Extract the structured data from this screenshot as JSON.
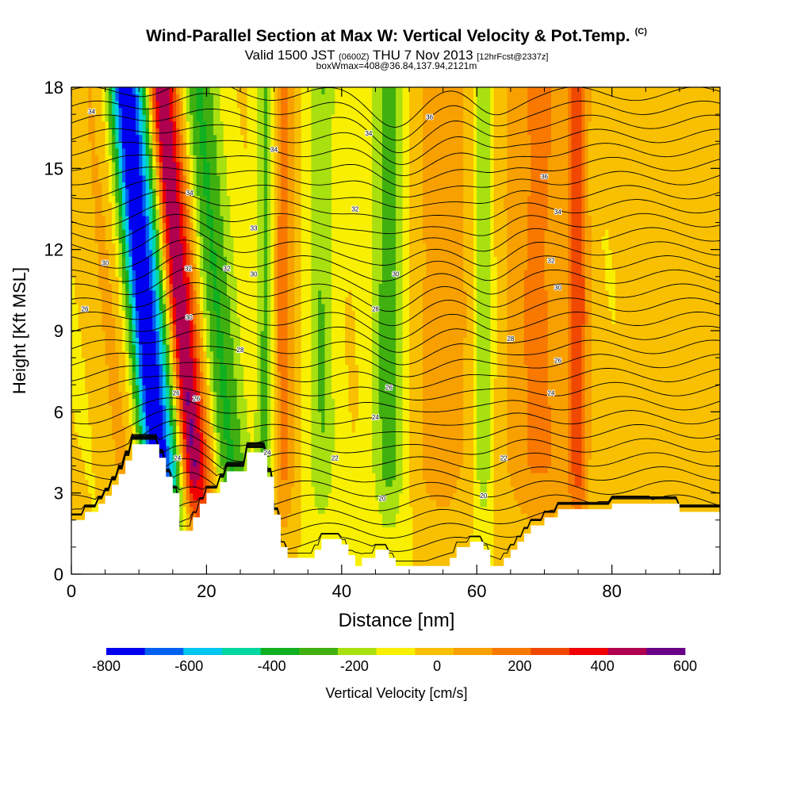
{
  "title": {
    "main": "Wind-Parallel Section at Max W: Vertical Velocity & Pot.Temp.",
    "copyright": "(C)",
    "valid_prefix": "Valid 1500 JST",
    "valid_zulu": "(0600Z)",
    "valid_date": "THU 7 Nov 2013",
    "forecast": "[12hrFcst@2337z]",
    "box": "boxWmax=408@36.84,137.94,2121m"
  },
  "chart_data": {
    "type": "heatmap",
    "xlabel": "Distance [nm]",
    "ylabel": "Height [Kft MSL]",
    "xlim": [
      0,
      96
    ],
    "ylim": [
      0,
      18
    ],
    "xticks": [
      "0",
      "20",
      "40",
      "60",
      "80"
    ],
    "yticks": [
      "0",
      "3",
      "6",
      "9",
      "12",
      "15",
      "18"
    ],
    "colorbar": {
      "label": "Vertical Velocity [cm/s]",
      "ticks": [
        "-800",
        "-600",
        "-400",
        "-200",
        "0",
        "200",
        "400",
        "600"
      ],
      "min": -800,
      "max": 600,
      "step": 100,
      "colors": [
        "#0000f0",
        "#0060f0",
        "#00c8f0",
        "#00d8a0",
        "#10b020",
        "#40b010",
        "#a8e010",
        "#f8f000",
        "#f8c000",
        "#f8a000",
        "#f87800",
        "#f04800",
        "#f00000",
        "#b00050",
        "#6a0088"
      ]
    },
    "terrain_kft": [
      [
        0,
        2
      ],
      [
        2,
        2
      ],
      [
        2,
        2.3
      ],
      [
        4,
        2.3
      ],
      [
        4,
        2.6
      ],
      [
        5,
        2.6
      ],
      [
        5,
        2.9
      ],
      [
        6,
        2.9
      ],
      [
        6,
        3.3
      ],
      [
        7,
        3.3
      ],
      [
        7,
        3.7
      ],
      [
        8,
        3.7
      ],
      [
        8,
        4.2
      ],
      [
        9,
        4.2
      ],
      [
        9,
        4.8
      ],
      [
        13,
        4.8
      ],
      [
        13,
        4.3
      ],
      [
        14,
        4.3
      ],
      [
        14,
        3.6
      ],
      [
        15,
        3.6
      ],
      [
        15,
        3.0
      ],
      [
        16,
        3.0
      ],
      [
        16,
        1.6
      ],
      [
        18,
        1.6
      ],
      [
        18,
        2.1
      ],
      [
        19,
        2.1
      ],
      [
        19,
        2.6
      ],
      [
        20,
        2.6
      ],
      [
        20,
        3.0
      ],
      [
        22,
        3.0
      ],
      [
        22,
        3.4
      ],
      [
        23,
        3.4
      ],
      [
        23,
        3.8
      ],
      [
        26,
        3.8
      ],
      [
        26,
        4.5
      ],
      [
        29,
        4.5
      ],
      [
        29,
        3.6
      ],
      [
        30,
        3.6
      ],
      [
        30,
        2.2
      ],
      [
        31,
        2.2
      ],
      [
        31,
        1.0
      ],
      [
        32,
        1.0
      ],
      [
        32,
        0.6
      ],
      [
        36,
        0.6
      ],
      [
        36,
        0.9
      ],
      [
        37,
        0.9
      ],
      [
        37,
        1.3
      ],
      [
        40,
        1.3
      ],
      [
        40,
        1.1
      ],
      [
        41,
        1.1
      ],
      [
        41,
        0.7
      ],
      [
        42,
        0.7
      ],
      [
        42,
        0.3
      ],
      [
        43,
        0.3
      ],
      [
        43,
        0.6
      ],
      [
        45,
        0.6
      ],
      [
        45,
        0.9
      ],
      [
        47,
        0.9
      ],
      [
        47,
        0.6
      ],
      [
        48,
        0.6
      ],
      [
        48,
        0.3
      ],
      [
        56,
        0.3
      ],
      [
        56,
        0.6
      ],
      [
        57,
        0.6
      ],
      [
        57,
        1.0
      ],
      [
        59,
        1.0
      ],
      [
        59,
        1.2
      ],
      [
        61,
        1.2
      ],
      [
        61,
        0.9
      ],
      [
        62,
        0.9
      ],
      [
        62,
        0.3
      ],
      [
        64,
        0.3
      ],
      [
        64,
        0.6
      ],
      [
        65,
        0.6
      ],
      [
        65,
        0.9
      ],
      [
        66,
        0.9
      ],
      [
        66,
        1.2
      ],
      [
        67,
        1.2
      ],
      [
        67,
        1.5
      ],
      [
        68,
        1.5
      ],
      [
        68,
        1.8
      ],
      [
        70,
        1.8
      ],
      [
        70,
        2.1
      ],
      [
        72,
        2.1
      ],
      [
        72,
        2.4
      ],
      [
        80,
        2.4
      ],
      [
        80,
        2.6
      ],
      [
        90,
        2.6
      ],
      [
        90,
        2.3
      ],
      [
        96,
        2.3
      ]
    ],
    "w_columns": [
      {
        "x": 14,
        "w": -520,
        "width": 4
      },
      {
        "x": 12,
        "w": -420,
        "width": 2
      },
      {
        "x": 18.5,
        "w": 600,
        "width": 2.5
      },
      {
        "x": 17,
        "w": 360,
        "width": 1.5
      },
      {
        "x": 23,
        "w": -330,
        "width": 3
      },
      {
        "x": 29,
        "w": -300,
        "width": 1.5
      },
      {
        "x": 31,
        "w": 280,
        "width": 2
      },
      {
        "x": 37,
        "w": -200,
        "width": 2
      },
      {
        "x": 47,
        "w": -260,
        "width": 2.5
      },
      {
        "x": 55,
        "w": 150,
        "width": 5
      },
      {
        "x": 61,
        "w": -220,
        "width": 1.5
      },
      {
        "x": 69,
        "w": 220,
        "width": 5
      },
      {
        "x": 75,
        "w": 330,
        "width": 1.5
      },
      {
        "x": 8,
        "w": 150,
        "width": 3
      },
      {
        "x": 90,
        "w": 80,
        "width": 6
      }
    ],
    "theta_labels": [
      {
        "x": 3,
        "y": 17.1,
        "text": "34"
      },
      {
        "x": 5,
        "y": 11.5,
        "text": "30"
      },
      {
        "x": 2,
        "y": 9.8,
        "text": "26"
      },
      {
        "x": 17.5,
        "y": 14.1,
        "text": "34"
      },
      {
        "x": 17.3,
        "y": 11.3,
        "text": "32"
      },
      {
        "x": 17.4,
        "y": 9.5,
        "text": "30"
      },
      {
        "x": 15.5,
        "y": 6.7,
        "text": "26"
      },
      {
        "x": 18.5,
        "y": 6.5,
        "text": "26"
      },
      {
        "x": 15.7,
        "y": 4.3,
        "text": "24"
      },
      {
        "x": 30,
        "y": 15.7,
        "text": "34"
      },
      {
        "x": 27,
        "y": 12.8,
        "text": "33"
      },
      {
        "x": 23,
        "y": 11.3,
        "text": "32"
      },
      {
        "x": 27,
        "y": 11.1,
        "text": "30"
      },
      {
        "x": 25,
        "y": 8.3,
        "text": "28"
      },
      {
        "x": 29,
        "y": 4.5,
        "text": "24"
      },
      {
        "x": 44,
        "y": 16.3,
        "text": "34"
      },
      {
        "x": 53,
        "y": 16.9,
        "text": "36"
      },
      {
        "x": 42,
        "y": 13.5,
        "text": "32"
      },
      {
        "x": 48,
        "y": 11.1,
        "text": "30"
      },
      {
        "x": 45,
        "y": 9.8,
        "text": "28"
      },
      {
        "x": 47,
        "y": 6.9,
        "text": "26"
      },
      {
        "x": 45,
        "y": 5.8,
        "text": "24"
      },
      {
        "x": 39,
        "y": 4.3,
        "text": "22"
      },
      {
        "x": 46,
        "y": 2.8,
        "text": "20"
      },
      {
        "x": 70,
        "y": 14.7,
        "text": "36"
      },
      {
        "x": 72,
        "y": 13.4,
        "text": "34"
      },
      {
        "x": 71,
        "y": 11.6,
        "text": "32"
      },
      {
        "x": 72,
        "y": 10.6,
        "text": "30"
      },
      {
        "x": 65,
        "y": 8.7,
        "text": "28"
      },
      {
        "x": 72,
        "y": 7.9,
        "text": "26"
      },
      {
        "x": 71,
        "y": 6.7,
        "text": "24"
      },
      {
        "x": 64,
        "y": 4.3,
        "text": "22"
      },
      {
        "x": 61,
        "y": 2.9,
        "text": "20"
      }
    ]
  }
}
